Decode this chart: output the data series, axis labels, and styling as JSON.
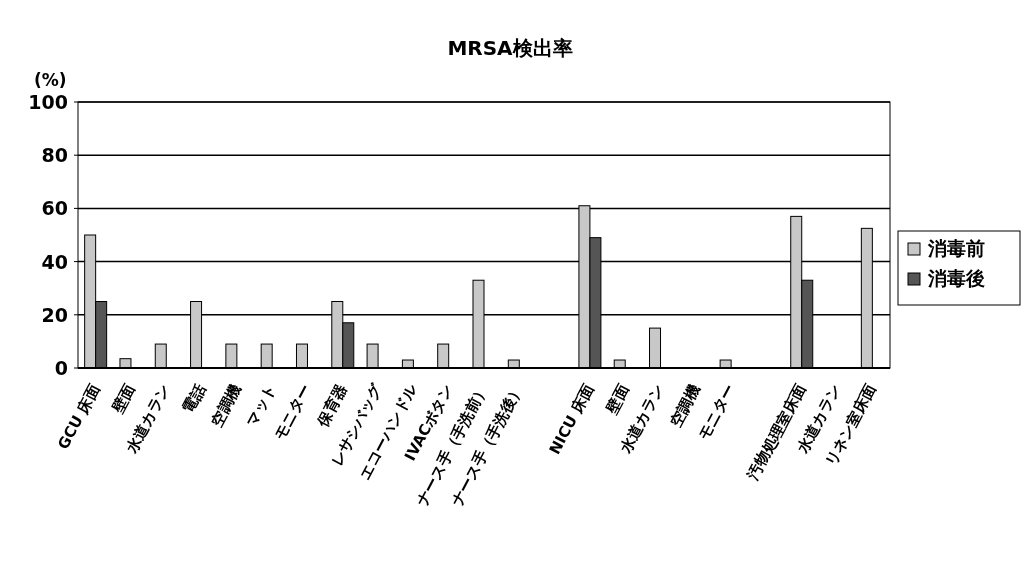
{
  "chart_data": {
    "type": "bar",
    "title": "MRSA検出率",
    "ylabel": "(%)",
    "categories": [
      "GCU 床面",
      "壁面",
      "水道カラン",
      "電話",
      "空調機",
      "マット",
      "モニター",
      "保育器",
      "レサシバッグ",
      "エコーハンドル",
      "IVACボタン",
      "ナース手（手洗前）",
      "ナース手（手洗後）",
      null,
      "NICU 床面",
      "壁面",
      "水道カラン",
      "空調機",
      "モニター",
      null,
      "汚物処理室床面",
      "水道カラン",
      "リネン室床面"
    ],
    "series": [
      {
        "name": "消毒前",
        "color": "#c8c8c8",
        "values": [
          50,
          3.5,
          9,
          25,
          9,
          9,
          9,
          25,
          9,
          3,
          9,
          33,
          3,
          null,
          61,
          3,
          15,
          0,
          3,
          null,
          57,
          0,
          52.5
        ]
      },
      {
        "name": "消毒後",
        "color": "#555555",
        "values": [
          25,
          0,
          0,
          0,
          0,
          0,
          0,
          17,
          0,
          0,
          0,
          0,
          0,
          null,
          49,
          0,
          0,
          0,
          0,
          null,
          33,
          0,
          0
        ]
      }
    ],
    "ylim": [
      0,
      100
    ],
    "yticks": [
      0,
      20,
      40,
      60,
      80,
      100
    ],
    "grid": "y",
    "legend": "right"
  }
}
